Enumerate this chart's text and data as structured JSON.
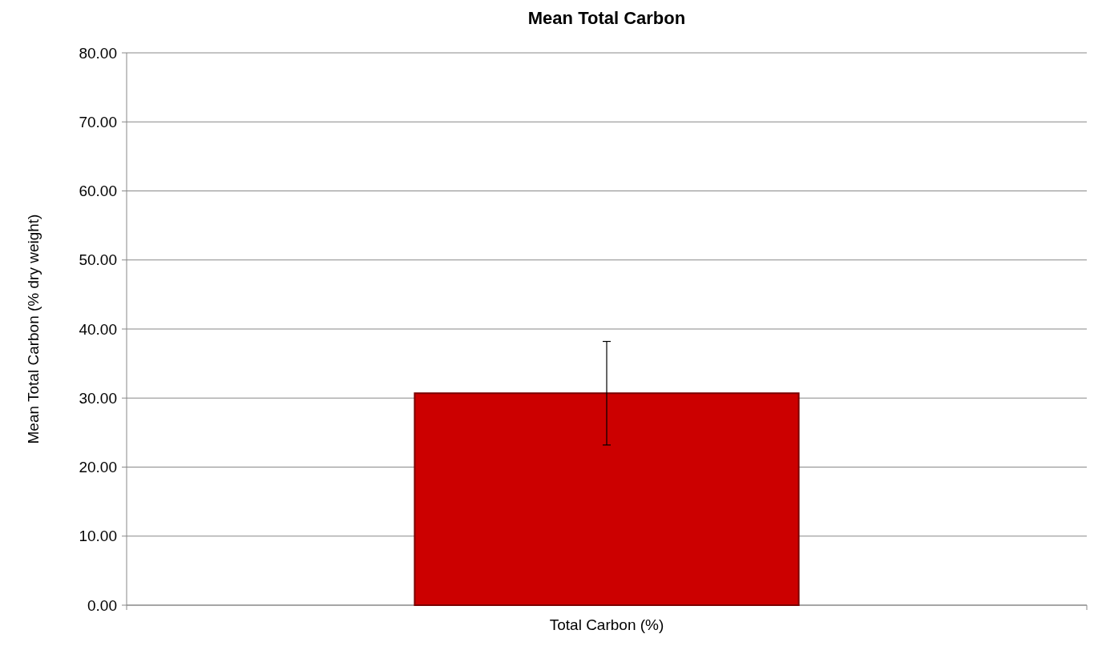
{
  "chart_data": {
    "type": "bar",
    "title": "Mean Total Carbon",
    "ylabel": "Mean Total Carbon (% dry weight)",
    "categories": [
      "Total Carbon (%)"
    ],
    "values": [
      30.7
    ],
    "errors": [
      7.5
    ],
    "color": "#cc0000",
    "ylim": [
      0,
      80
    ],
    "yticks": [
      {
        "value": 0,
        "label": "0.00"
      },
      {
        "value": 10,
        "label": "10.00"
      },
      {
        "value": 20,
        "label": "20.00"
      },
      {
        "value": 30,
        "label": "30.00"
      },
      {
        "value": 40,
        "label": "40.00"
      },
      {
        "value": 50,
        "label": "50.00"
      },
      {
        "value": 60,
        "label": "60.00"
      },
      {
        "value": 70,
        "label": "70.00"
      },
      {
        "value": 80,
        "label": "80.00"
      }
    ],
    "grid": "y"
  }
}
